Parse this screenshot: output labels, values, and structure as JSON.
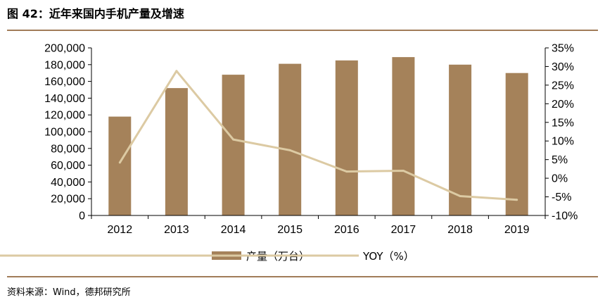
{
  "header": {
    "title": "图 42：近年来国内手机产量及增速"
  },
  "footer": {
    "source": "资料来源：Wind，德邦研究所"
  },
  "chart_data": {
    "type": "bar",
    "categories": [
      "2012",
      "2013",
      "2014",
      "2015",
      "2016",
      "2017",
      "2018",
      "2019"
    ],
    "series": [
      {
        "name": "产量（万台）",
        "type": "bar",
        "axis": "left",
        "values": [
          118000,
          152000,
          168000,
          181000,
          185000,
          189000,
          180000,
          170000
        ]
      },
      {
        "name": "YOY（%）",
        "type": "line",
        "axis": "right",
        "values": [
          4.2,
          28.8,
          10.4,
          7.5,
          1.8,
          2.0,
          -4.8,
          -5.8
        ]
      }
    ],
    "y_left": {
      "min": 0,
      "max": 200000,
      "step": 20000,
      "tick_labels": [
        "0",
        "20,000",
        "40,000",
        "60,000",
        "80,000",
        "100,000",
        "120,000",
        "140,000",
        "160,000",
        "180,000",
        "200,000"
      ]
    },
    "y_right": {
      "min": -10,
      "max": 35,
      "step": 5,
      "tick_labels": [
        "-10%",
        "-5%",
        "0%",
        "5%",
        "10%",
        "15%",
        "20%",
        "25%",
        "30%",
        "35%"
      ]
    },
    "colors": {
      "bar": "#a5825a",
      "line": "#dccaa3",
      "rule": "#a17c59",
      "axis": "#000000"
    },
    "grid": false,
    "legend": "bottom"
  }
}
